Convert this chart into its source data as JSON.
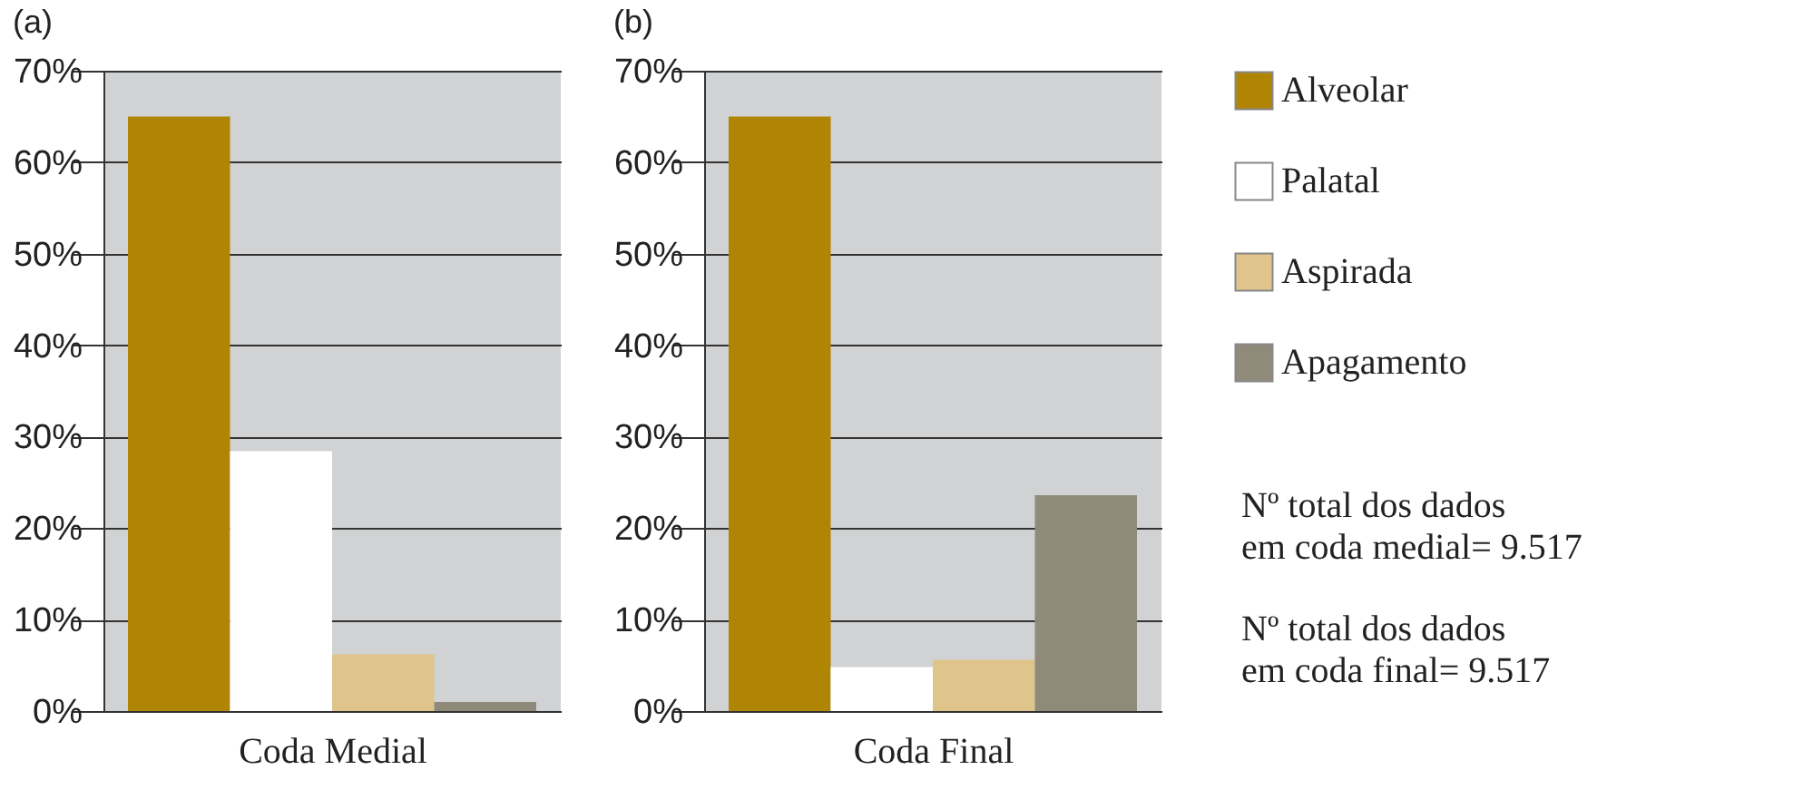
{
  "chart_data": [
    {
      "type": "bar",
      "title": "(a)",
      "xlabel": "Coda Medial",
      "categories": [
        null
      ],
      "series": [
        {
          "color": "#b08504",
          "values": [
            65
          ]
        },
        {
          "color": "#ffffff",
          "values": [
            28.4
          ]
        },
        {
          "color": "#dfc48c",
          "values": [
            6.2
          ]
        },
        {
          "color": "#908a7b",
          "values": [
            1.0
          ]
        }
      ],
      "ylim": [
        0,
        70
      ],
      "yticks": [
        {
          "value": 0,
          "label": "0%"
        },
        {
          "value": 10,
          "label": "10%"
        },
        {
          "value": 20,
          "label": "20%"
        },
        {
          "value": 30,
          "label": "30%"
        },
        {
          "value": 40,
          "label": "40%"
        },
        {
          "value": 50,
          "label": "50%"
        },
        {
          "value": 60,
          "label": "60%"
        },
        {
          "value": 70,
          "label": "70%"
        }
      ],
      "grid": "y"
    },
    {
      "type": "bar",
      "title": "(b)",
      "xlabel": "Coda Final",
      "categories": [
        null
      ],
      "series": [
        {
          "name": "Alveolar",
          "color": "#b08504",
          "values": [
            65
          ]
        },
        {
          "name": "Palatal",
          "color": "#ffffff",
          "values": [
            4.8
          ]
        },
        {
          "name": "Aspirada",
          "color": "#dfc48c",
          "values": [
            5.6
          ]
        },
        {
          "name": "Apagamento",
          "color": "#908a7b",
          "values": [
            23.6
          ]
        }
      ],
      "ylim": [
        0,
        70
      ],
      "yticks": [
        {
          "value": 0,
          "label": "0%"
        },
        {
          "value": 10,
          "label": "10%"
        },
        {
          "value": 20,
          "label": "20%"
        },
        {
          "value": 30,
          "label": "30%"
        },
        {
          "value": 40,
          "label": "40%"
        },
        {
          "value": 50,
          "label": "50%"
        },
        {
          "value": 60,
          "label": "60%"
        },
        {
          "value": 70,
          "label": "70%"
        }
      ],
      "grid": "y",
      "legend": "right",
      "annotations": [
        "Nº total dos dados\nem coda medial= 9.517",
        "Nº total dos dados\nem coda final= 9.517"
      ]
    }
  ]
}
